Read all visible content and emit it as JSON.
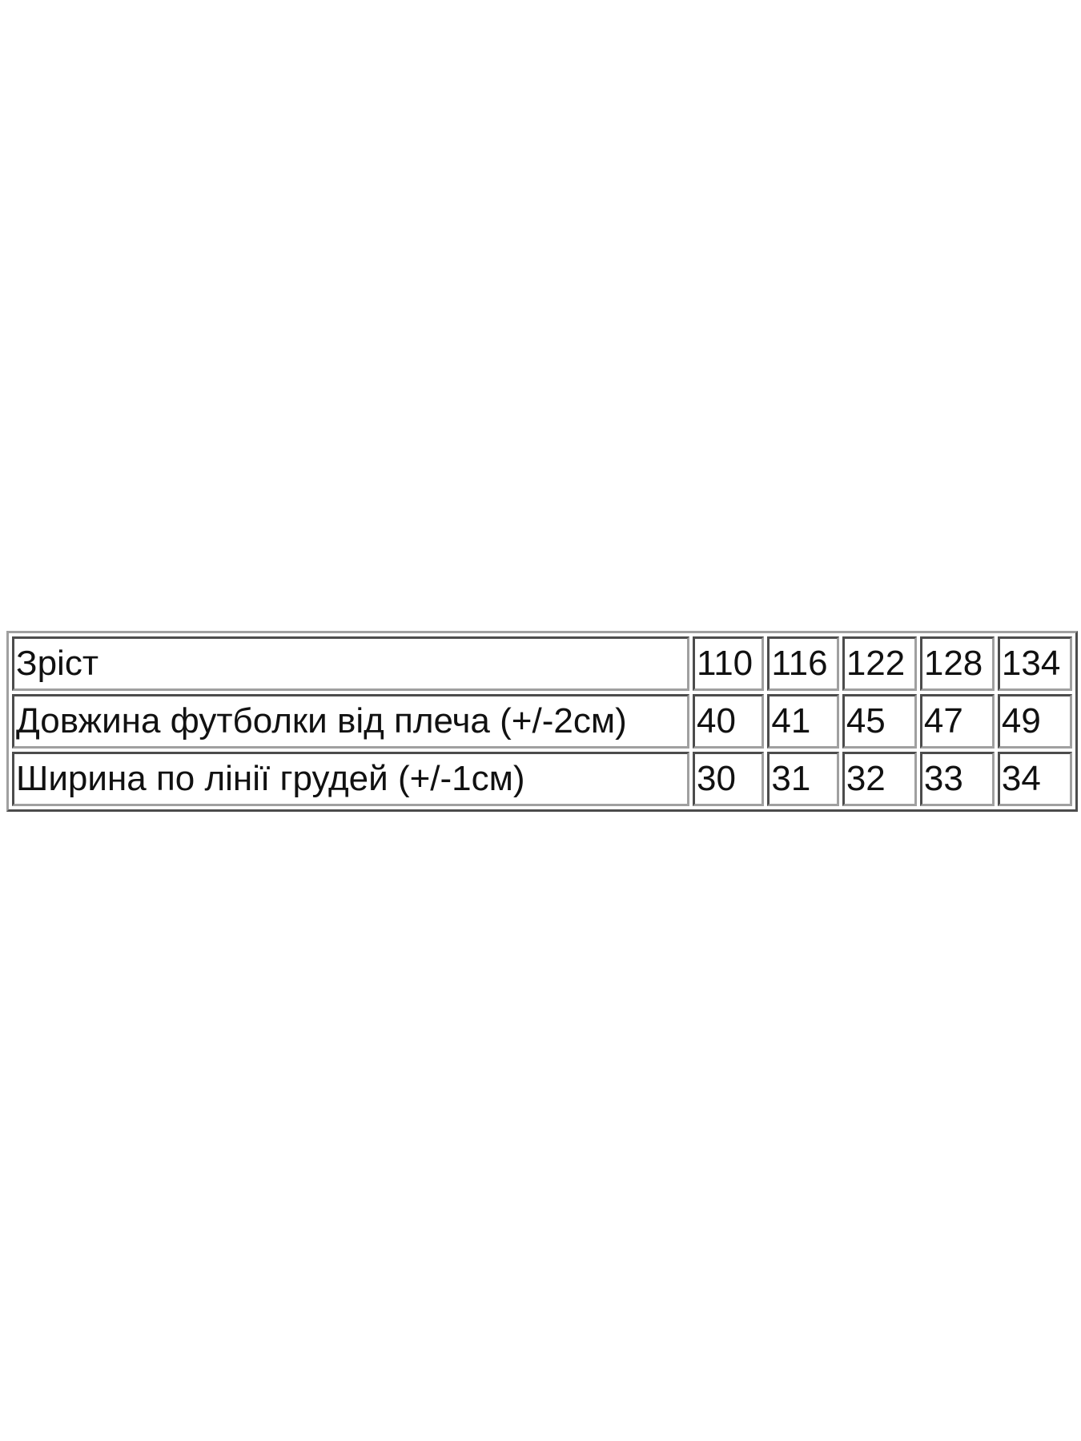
{
  "table": {
    "rows": [
      {
        "label": "Зріст",
        "values": [
          "110",
          "116",
          "122",
          "128",
          "134"
        ]
      },
      {
        "label": "Довжина футболки від плеча (+/-2см)",
        "values": [
          "40",
          "41",
          "45",
          "47",
          "49"
        ]
      },
      {
        "label": "Ширина по лінії грудей (+/-1см)",
        "values": [
          "30",
          "31",
          "32",
          "33",
          "34"
        ]
      }
    ]
  }
}
